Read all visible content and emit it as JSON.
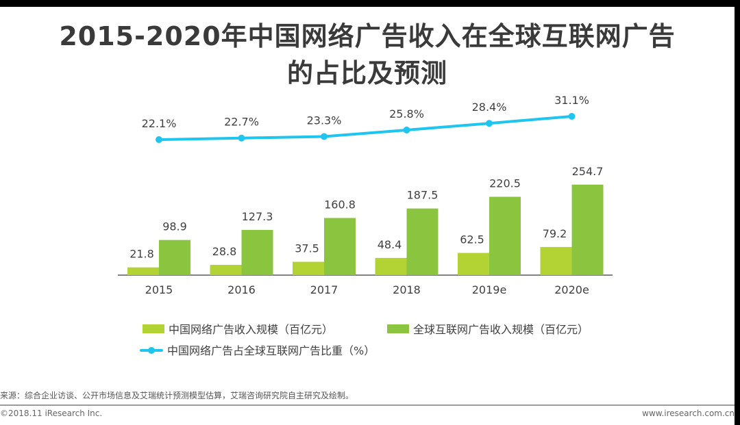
{
  "title_line1": "2015-2020年中国网络广告收入在全球互联网广告",
  "title_line2": "的占比及预测",
  "chart_data": {
    "type": "bar",
    "title": "2015-2020年中国网络广告收入在全球互联网广告的占比及预测",
    "categories": [
      "2015",
      "2016",
      "2017",
      "2018",
      "2019e",
      "2020e"
    ],
    "series": [
      {
        "name": "中国网络广告收入规模（百亿元）",
        "type": "bar",
        "color": "#b3d234",
        "values": [
          21.8,
          28.8,
          37.5,
          48.4,
          62.5,
          79.2
        ]
      },
      {
        "name": "全球互联网广告收入规模（百亿元）",
        "type": "bar",
        "color": "#8bc43f",
        "values": [
          98.9,
          127.3,
          160.8,
          187.5,
          220.5,
          254.7
        ]
      },
      {
        "name": "中国网络广告占全球互联网广告比重（%）",
        "type": "line",
        "color": "#1ec5ef",
        "values": [
          22.1,
          22.7,
          23.3,
          25.8,
          28.4,
          31.1
        ],
        "value_suffix": "%"
      }
    ],
    "xlabel": "",
    "ylabel": "",
    "bar_ylim": [
      0,
      260
    ],
    "line_ylim": [
      0,
      35
    ],
    "grid": false,
    "legend_position": "bottom"
  },
  "legend": {
    "item1": "中国网络广告收入规模（百亿元）",
    "item2": "全球互联网广告收入规模（百亿元）",
    "item3": "中国网络广告占全球互联网广告比重（%）"
  },
  "footer": {
    "source": "来源：综合企业访谈、公开市场信息及艾瑞统计预测模型估算，艾瑞咨询研究院自主研究及绘制。",
    "copyright": "©2018.11 iResearch Inc.",
    "website": "www.iresearch.com.cn"
  }
}
